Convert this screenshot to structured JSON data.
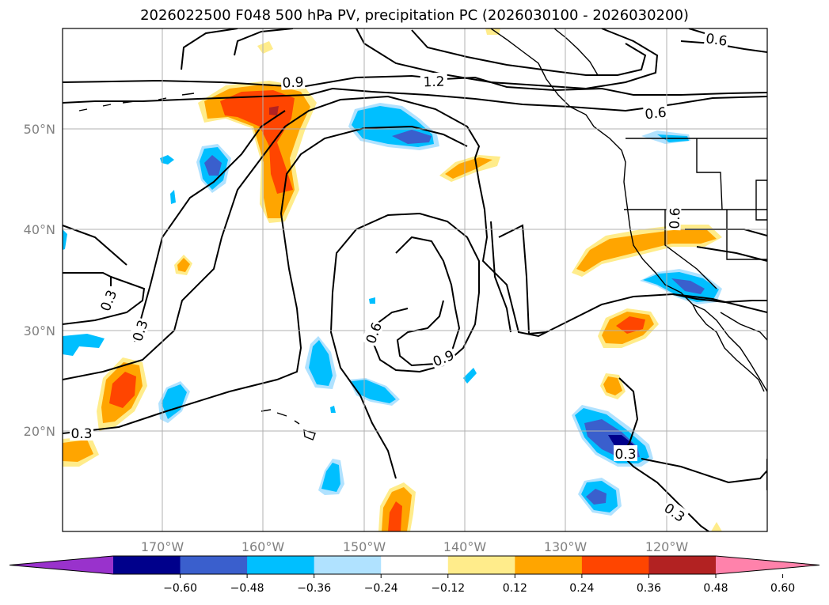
{
  "title": "2026022500 F048 500 hPa PV, precipitation PC (2026030100 - 2026030200)",
  "lon_labels": [
    "170°W",
    "160°W",
    "150°W",
    "140°W",
    "130°W",
    "120°W"
  ],
  "lat_labels": [
    "50°N",
    "40°N",
    "30°N",
    "20°N"
  ],
  "contour_labels": [
    "0.6",
    "1.2",
    "0.9",
    "0.6",
    "0.3",
    "0.3",
    "0.3",
    "0.6",
    "0.9",
    "0.3",
    "0.3",
    "0.6"
  ],
  "colorbar": {
    "ticks": [
      "−0.60",
      "−0.48",
      "−0.36",
      "−0.24",
      "−0.12",
      "0.12",
      "0.24",
      "0.36",
      "0.48",
      "0.60"
    ],
    "colors": [
      "#9932cc",
      "#00008b",
      "#3a5fcd",
      "#00bfff",
      "#b0e2ff",
      "#ffffff",
      "#ffec8b",
      "#ffa500",
      "#ff4500",
      "#b22222",
      "#ff82ab"
    ]
  },
  "palette": {
    "yellow": "#ffec8b",
    "orange": "#ffa500",
    "red": "#ff4500",
    "darkred": "#b22222",
    "lightblue": "#b0e2ff",
    "cyan": "#00bfff",
    "blue": "#3a5fcd",
    "navy": "#00008b"
  }
}
